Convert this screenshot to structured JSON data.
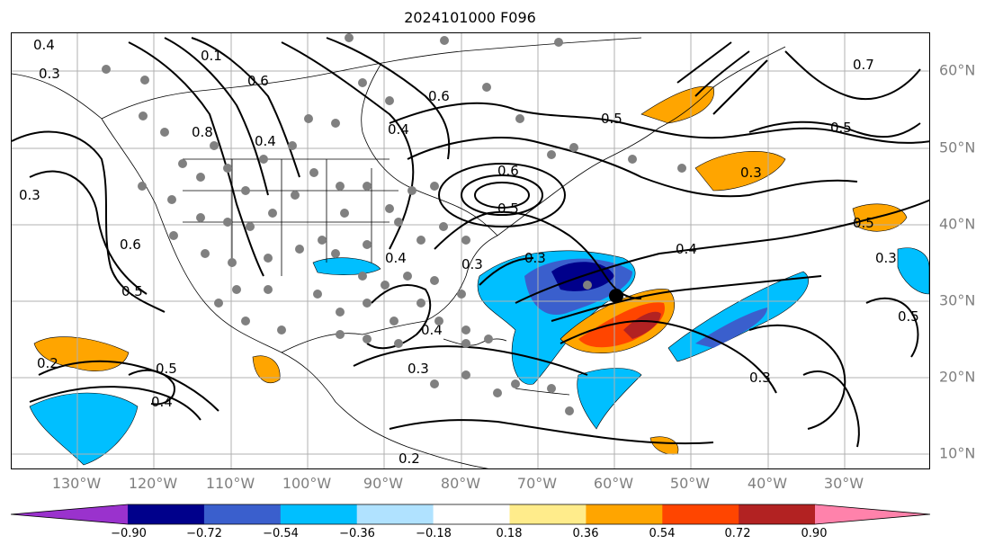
{
  "title": "2024101000 F096",
  "lon_labels": [
    "130°W",
    "120°W",
    "110°W",
    "100°W",
    "90°W",
    "80°W",
    "70°W",
    "60°W",
    "50°W",
    "40°W",
    "30°W"
  ],
  "lat_labels": [
    "60°N",
    "50°N",
    "40°N",
    "30°N",
    "20°N",
    "10°N"
  ],
  "colorbar": {
    "ticks": [
      "−0.90",
      "−0.72",
      "−0.54",
      "−0.36",
      "−0.18",
      "0.18",
      "0.36",
      "0.54",
      "0.72",
      "0.90"
    ],
    "colors": [
      "#9a32cd",
      "#00008b",
      "#3a5fcd",
      "#00bfff",
      "#b0e2ff",
      "#ffffff",
      "#ffec8b",
      "#ffa500",
      "#ff4500",
      "#b22222",
      "#ff82ab"
    ]
  },
  "contour_labels": [
    "0.4",
    "0.3",
    "0.1",
    "0.8",
    "0.6",
    "0.4",
    "0.4",
    "0.6",
    "0.5",
    "0.7",
    "0.5",
    "0.3",
    "0.5",
    "0.6",
    "0.3",
    "0.6",
    "0.5",
    "0.5",
    "0.4",
    "0.3",
    "0.2",
    "0.5",
    "0.4",
    "0.3",
    "0.4",
    "0.2",
    "0.3",
    "0.5",
    "0.3",
    "0.4",
    "0.3"
  ],
  "legend_colors": {
    "contour": "#000000",
    "grid": "#b0b0b0",
    "marker": "#808080"
  }
}
